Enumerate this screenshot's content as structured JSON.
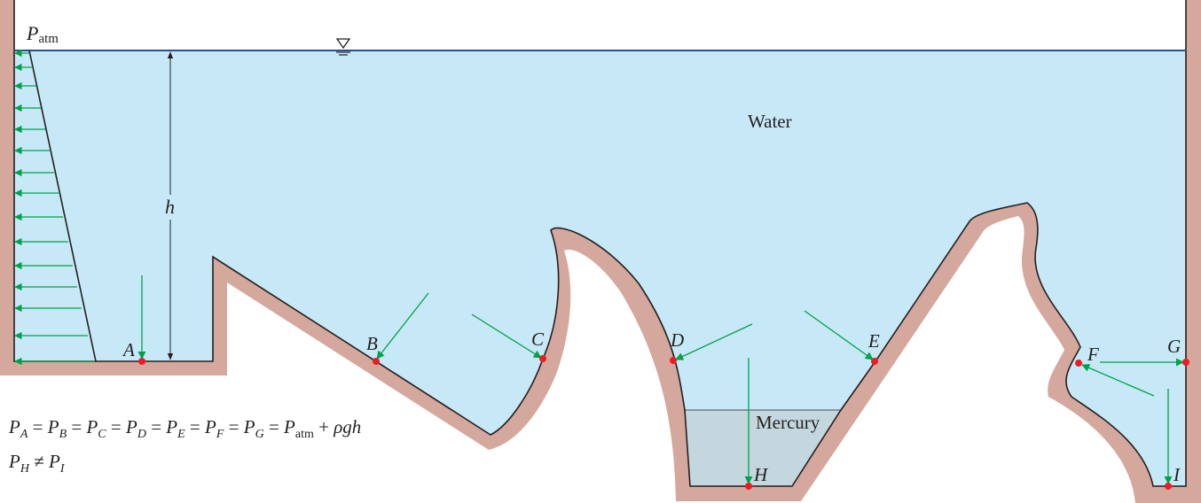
{
  "colors": {
    "water": "#c7e8f7",
    "mercury": "#c4d7df",
    "wall": "#d4a89c",
    "outline": "#231f20",
    "arrow": "#00a14b",
    "point": "#ed1c24",
    "surface_line": "#2b4e8c"
  },
  "labels": {
    "patm_main": "P",
    "patm_sub": "atm",
    "water": "Water",
    "mercury": "Mercury",
    "depth": "h",
    "free_surface_symbol": "∇"
  },
  "points": [
    {
      "id": "A",
      "label": "A"
    },
    {
      "id": "B",
      "label": "B"
    },
    {
      "id": "C",
      "label": "C"
    },
    {
      "id": "D",
      "label": "D"
    },
    {
      "id": "E",
      "label": "E"
    },
    {
      "id": "F",
      "label": "F"
    },
    {
      "id": "G",
      "label": "G"
    },
    {
      "id": "H",
      "label": "H"
    },
    {
      "id": "I",
      "label": "I"
    }
  ],
  "equations": {
    "line1": {
      "terms": [
        {
          "sym": "P",
          "sub": "A"
        },
        {
          "sym": "P",
          "sub": "B"
        },
        {
          "sym": "P",
          "sub": "C"
        },
        {
          "sym": "P",
          "sub": "D"
        },
        {
          "sym": "P",
          "sub": "E"
        },
        {
          "sym": "P",
          "sub": "F"
        },
        {
          "sym": "P",
          "sub": "G"
        },
        {
          "sym": "P",
          "sub": "atm"
        }
      ],
      "equals": "=",
      "plus": "+",
      "tail": "ρgh"
    },
    "line2": {
      "left": {
        "sym": "P",
        "sub": "H"
      },
      "op": "≠",
      "right": {
        "sym": "P",
        "sub": "I"
      }
    }
  }
}
